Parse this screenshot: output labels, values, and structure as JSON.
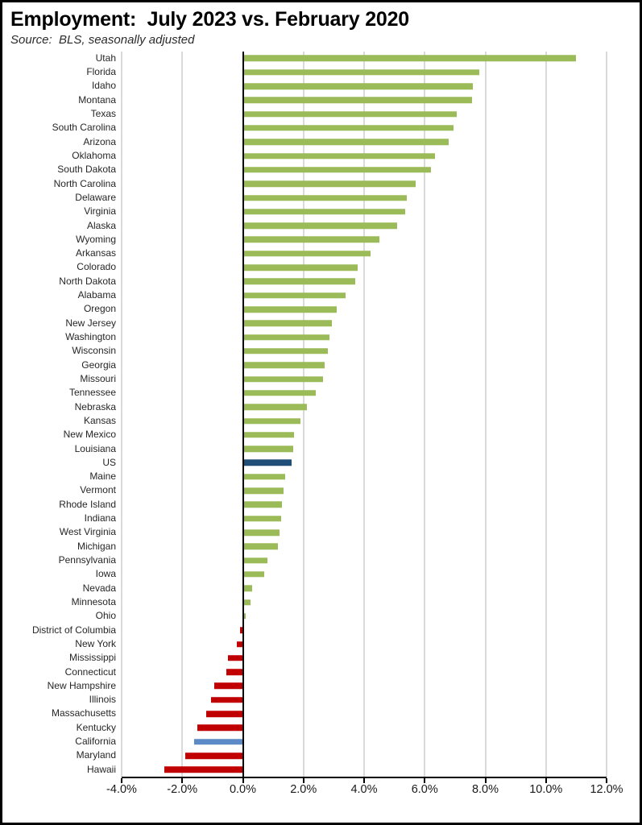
{
  "header": {
    "title": "Employment:  July 2023 vs. February 2020",
    "source": "Source:  BLS, seasonally adjusted"
  },
  "chart_data": {
    "type": "bar",
    "orientation": "horizontal",
    "title": "Employment:  July 2023 vs. February 2020",
    "subtitle": "Source:  BLS, seasonally adjusted",
    "xlabel": "",
    "ylabel": "",
    "unit": "percent",
    "xlim": [
      -4,
      12
    ],
    "grid": "vertical",
    "legend": "none",
    "x_tick_values": [
      -4,
      -2,
      0,
      2,
      4,
      6,
      8,
      10,
      12
    ],
    "x_tick_labels": [
      "-4.0%",
      "-2.0%",
      "0.0%",
      "2.0%",
      "4.0%",
      "6.0%",
      "8.0%",
      "10.0%",
      "12.0%"
    ],
    "colors": {
      "positive": "#9bbb59",
      "negative": "#c00000",
      "us": "#1f4e79",
      "california": "#5b8ac6",
      "gridline": "#dadada",
      "axis": "#000000"
    },
    "points": [
      {
        "label": "Utah",
        "value": 11.0
      },
      {
        "label": "Florida",
        "value": 7.8
      },
      {
        "label": "Idaho",
        "value": 7.6
      },
      {
        "label": "Montana",
        "value": 7.55
      },
      {
        "label": "Texas",
        "value": 7.05
      },
      {
        "label": "South Carolina",
        "value": 6.95
      },
      {
        "label": "Arizona",
        "value": 6.8
      },
      {
        "label": "Oklahoma",
        "value": 6.35
      },
      {
        "label": "South Dakota",
        "value": 6.2
      },
      {
        "label": "North Carolina",
        "value": 5.7
      },
      {
        "label": "Delaware",
        "value": 5.4
      },
      {
        "label": "Virginia",
        "value": 5.35
      },
      {
        "label": "Alaska",
        "value": 5.1
      },
      {
        "label": "Wyoming",
        "value": 4.5
      },
      {
        "label": "Arkansas",
        "value": 4.2
      },
      {
        "label": "Colorado",
        "value": 3.8
      },
      {
        "label": "North Dakota",
        "value": 3.7
      },
      {
        "label": "Alabama",
        "value": 3.4
      },
      {
        "label": "Oregon",
        "value": 3.1
      },
      {
        "label": "New Jersey",
        "value": 2.95
      },
      {
        "label": "Washington",
        "value": 2.85
      },
      {
        "label": "Wisconsin",
        "value": 2.8
      },
      {
        "label": "Georgia",
        "value": 2.7
      },
      {
        "label": "Missouri",
        "value": 2.65
      },
      {
        "label": "Tennessee",
        "value": 2.4
      },
      {
        "label": "Nebraska",
        "value": 2.1
      },
      {
        "label": "Kansas",
        "value": 1.9
      },
      {
        "label": "New Mexico",
        "value": 1.7
      },
      {
        "label": "Louisiana",
        "value": 1.65
      },
      {
        "label": "US",
        "value": 1.6,
        "color_key": "us"
      },
      {
        "label": "Maine",
        "value": 1.4
      },
      {
        "label": "Vermont",
        "value": 1.35
      },
      {
        "label": "Rhode Island",
        "value": 1.3
      },
      {
        "label": "Indiana",
        "value": 1.25
      },
      {
        "label": "West Virginia",
        "value": 1.2
      },
      {
        "label": "Michigan",
        "value": 1.15
      },
      {
        "label": "Pennsylvania",
        "value": 0.8
      },
      {
        "label": "Iowa",
        "value": 0.7
      },
      {
        "label": "Nevada",
        "value": 0.3
      },
      {
        "label": "Minnesota",
        "value": 0.25
      },
      {
        "label": "Ohio",
        "value": 0.1
      },
      {
        "label": "District of Columbia",
        "value": -0.1
      },
      {
        "label": "New York",
        "value": -0.2
      },
      {
        "label": "Mississippi",
        "value": -0.5
      },
      {
        "label": "Connecticut",
        "value": -0.55
      },
      {
        "label": "New Hampshire",
        "value": -0.95
      },
      {
        "label": "Illinois",
        "value": -1.05
      },
      {
        "label": "Massachusetts",
        "value": -1.2
      },
      {
        "label": "Kentucky",
        "value": -1.5
      },
      {
        "label": "California",
        "value": -1.6,
        "color_key": "california"
      },
      {
        "label": "Maryland",
        "value": -1.9
      },
      {
        "label": "Hawaii",
        "value": -2.6
      }
    ]
  }
}
